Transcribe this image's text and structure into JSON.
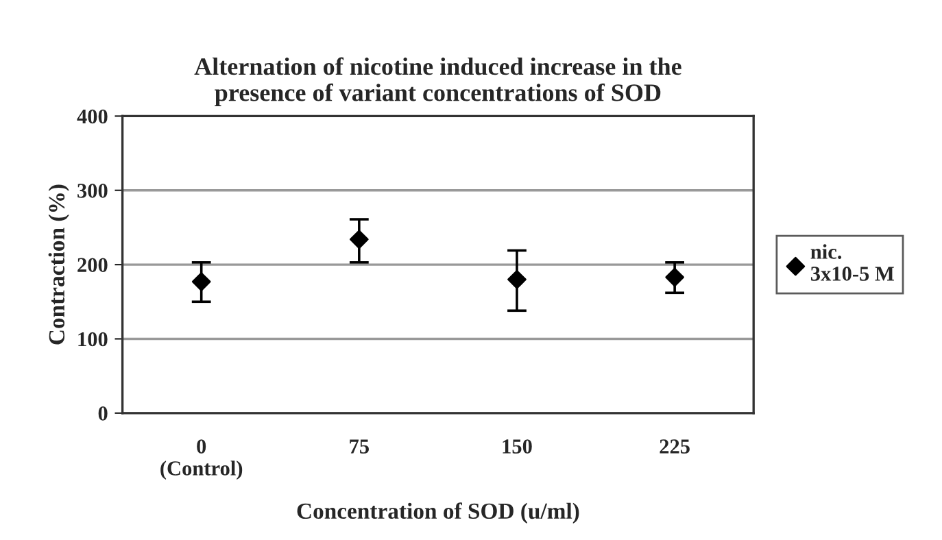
{
  "chart_data": {
    "type": "scatter",
    "title": "Alternation of nicotine induced increase in the\npresence of variant concentrations of SOD",
    "xlabel": "Concentration of SOD (u/ml)",
    "ylabel": "Contraction (%)",
    "categories": [
      "0\n(Control)",
      "75",
      "150",
      "225"
    ],
    "series": [
      {
        "name": "nic.\n3x10-5 M",
        "color": "#000000",
        "values": [
          177,
          234,
          180,
          183
        ],
        "errors": [
          [
            150,
            203
          ],
          [
            203,
            261
          ],
          [
            138,
            219
          ],
          [
            162,
            203
          ]
        ]
      }
    ],
    "ylim": [
      0,
      400
    ],
    "yticks": [
      0,
      100,
      200,
      300,
      400
    ],
    "grid": "y",
    "legend": "right",
    "marker": "diamond"
  }
}
